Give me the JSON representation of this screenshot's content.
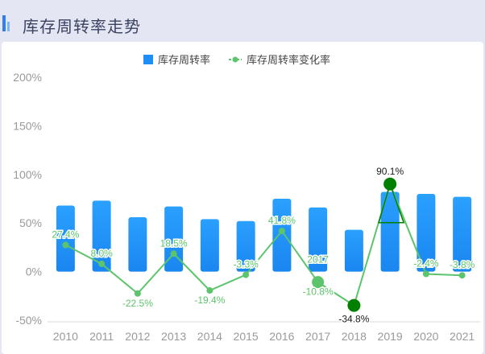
{
  "page": {
    "title": "库存周转率走势"
  },
  "colors": {
    "bar": "#1e8ef6",
    "line": "#5cc46b",
    "highlight": "#008000",
    "tick": "#9a9a9a",
    "label_dark": "#1a1a1a"
  },
  "chart_data": {
    "type": "bar",
    "categories": [
      "2010",
      "2011",
      "2012",
      "2013",
      "2014",
      "2015",
      "2016",
      "2017",
      "2018",
      "2019",
      "2020",
      "2021"
    ],
    "series": [
      {
        "name": "库存周转率",
        "type": "bar",
        "values": [
          68,
          73,
          56,
          67,
          54,
          52,
          75,
          66,
          43,
          82,
          80,
          77
        ]
      },
      {
        "name": "库存周转率变化率",
        "type": "line",
        "values": [
          27.4,
          8.0,
          -22.5,
          18.5,
          -19.4,
          -3.3,
          41.8,
          -10.8,
          -34.8,
          90.1,
          -2.4,
          -3.8
        ],
        "labels": [
          "27.4%",
          "8.0%",
          "-22.5%",
          "18.5%",
          "-19.4%",
          "-3.3%",
          "41.8%",
          "-10.8%",
          "-34.8%",
          "90.1%",
          "-2.4%",
          "-3.8%"
        ]
      }
    ],
    "y_ticks": [
      "200%",
      "150%",
      "100%",
      "50%",
      "0%",
      "-50%"
    ],
    "ylim": [
      -50,
      200
    ],
    "legend_position": "top-center",
    "grid": false,
    "highlights": [
      {
        "category": "2019",
        "kind": "max"
      },
      {
        "category": "2018",
        "kind": "min"
      },
      {
        "category": "2017",
        "kind": "hover",
        "tooltip": "2017"
      }
    ]
  }
}
